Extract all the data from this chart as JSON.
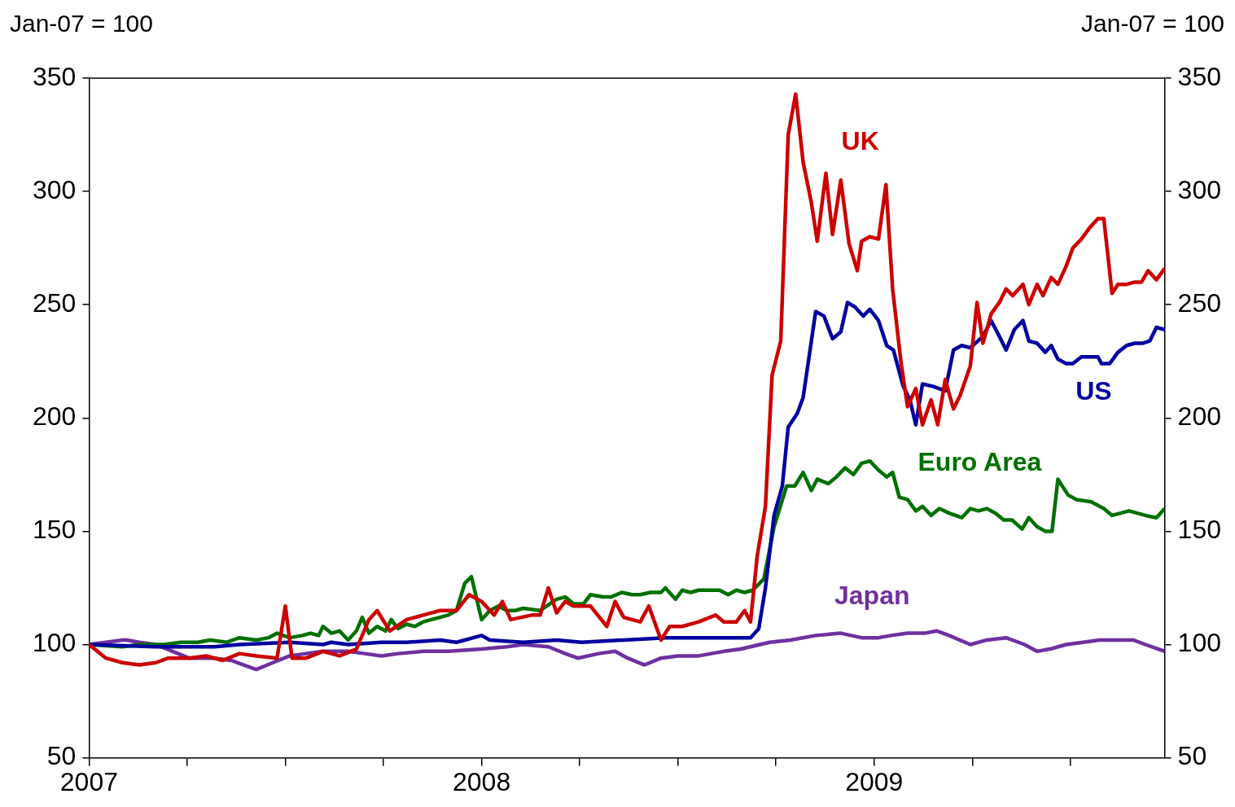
{
  "chart_data": {
    "type": "line",
    "ylabel": "Jan-07 = 100",
    "y2label": "Jan-07 = 100",
    "xlim": [
      2007,
      2009.74
    ],
    "ylim": [
      50,
      350
    ],
    "yticks": [
      50,
      100,
      150,
      200,
      250,
      300,
      350
    ],
    "y2lim": [
      50,
      350
    ],
    "y2ticks": [
      50,
      100,
      150,
      200,
      250,
      300,
      350
    ],
    "xticks": [
      {
        "value": 2007,
        "label": "2007"
      },
      {
        "value": 2007.25,
        "label": null
      },
      {
        "value": 2007.5,
        "label": null
      },
      {
        "value": 2007.75,
        "label": null
      },
      {
        "value": 2008,
        "label": "2008"
      },
      {
        "value": 2008.25,
        "label": null
      },
      {
        "value": 2008.5,
        "label": null
      },
      {
        "value": 2008.75,
        "label": null
      },
      {
        "value": 2009,
        "label": "2009"
      },
      {
        "value": 2009.25,
        "label": null
      },
      {
        "value": 2009.5,
        "label": null
      }
    ],
    "grid": false,
    "legend": false,
    "marker": "none",
    "line_style": "solid",
    "series": [
      {
        "name": "UK",
        "color": "#cc0000",
        "x": [
          2007,
          2007.043,
          2007.085,
          2007.128,
          2007.17,
          2007.202,
          2007.255,
          2007.298,
          2007.34,
          2007.383,
          2007.426,
          2007.479,
          2007.5,
          2007.517,
          2007.553,
          2007.596,
          2007.638,
          2007.681,
          2007.713,
          2007.734,
          2007.766,
          2007.809,
          2007.851,
          2007.894,
          2007.936,
          2007.968,
          2008,
          2008.032,
          2008.053,
          2008.074,
          2008.128,
          2008.149,
          2008.17,
          2008.191,
          2008.213,
          2008.234,
          2008.277,
          2008.319,
          2008.34,
          2008.362,
          2008.404,
          2008.426,
          2008.457,
          2008.479,
          2008.511,
          2008.553,
          2008.596,
          2008.617,
          2008.649,
          2008.67,
          2008.685,
          2008.702,
          2008.723,
          2008.74,
          2008.762,
          2008.781,
          2008.8,
          2008.819,
          2008.84,
          2008.855,
          2008.877,
          2008.894,
          2008.915,
          2008.936,
          2008.957,
          2008.968,
          2008.989,
          2009.011,
          2009.03,
          2009.047,
          2009.068,
          2009.085,
          2009.106,
          2009.123,
          2009.145,
          2009.162,
          2009.181,
          2009.202,
          2009.219,
          2009.245,
          2009.262,
          2009.277,
          2009.298,
          2009.319,
          2009.336,
          2009.353,
          2009.379,
          2009.394,
          2009.415,
          2009.43,
          2009.451,
          2009.468,
          2009.489,
          2009.506,
          2009.528,
          2009.549,
          2009.57,
          2009.585,
          2009.606,
          2009.621,
          2009.643,
          2009.664,
          2009.681,
          2009.698,
          2009.719,
          2009.74
        ],
        "values": [
          100,
          94,
          92,
          91,
          92,
          94,
          94,
          95,
          93,
          96,
          95,
          94,
          117,
          94,
          94,
          97,
          95,
          98,
          111,
          115,
          106,
          111,
          113,
          115,
          115,
          122,
          119,
          113,
          119,
          111,
          113,
          113,
          125,
          114,
          119,
          117,
          117,
          108,
          119,
          112,
          110,
          117,
          102,
          108,
          108,
          110,
          113,
          110,
          110,
          115,
          110,
          139,
          161,
          219,
          234,
          325,
          343,
          313,
          295,
          278,
          308,
          281,
          305,
          277,
          265,
          278,
          280,
          279,
          303,
          257,
          225,
          205,
          213,
          197,
          208,
          197,
          217,
          204,
          210,
          223,
          251,
          233,
          246,
          251,
          257,
          254,
          259,
          250,
          259,
          254,
          262,
          259,
          267,
          275,
          279,
          284,
          288,
          288,
          255,
          259,
          259,
          260,
          260,
          265,
          261,
          266
        ]
      },
      {
        "name": "US",
        "color": "#0000a0",
        "x": [
          2007,
          2007.17,
          2007.319,
          2007.383,
          2007.511,
          2007.596,
          2007.617,
          2007.66,
          2007.745,
          2007.809,
          2007.894,
          2007.936,
          2008,
          2008.021,
          2008.106,
          2008.191,
          2008.255,
          2008.362,
          2008.468,
          2008.511,
          2008.596,
          2008.66,
          2008.685,
          2008.706,
          2008.723,
          2008.745,
          2008.766,
          2008.781,
          2008.804,
          2008.819,
          2008.851,
          2008.872,
          2008.894,
          2008.915,
          2008.932,
          2008.951,
          2008.972,
          2008.989,
          2009.011,
          2009.032,
          2009.049,
          2009.074,
          2009.091,
          2009.106,
          2009.123,
          2009.149,
          2009.181,
          2009.202,
          2009.223,
          2009.245,
          2009.277,
          2009.298,
          2009.319,
          2009.336,
          2009.357,
          2009.379,
          2009.394,
          2009.415,
          2009.436,
          2009.451,
          2009.468,
          2009.489,
          2009.506,
          2009.528,
          2009.549,
          2009.57,
          2009.579,
          2009.6,
          2009.621,
          2009.643,
          2009.664,
          2009.685,
          2009.702,
          2009.719,
          2009.74
        ],
        "values": [
          100,
          99,
          99,
          100,
          101,
          100,
          101,
          100,
          101,
          101,
          102,
          101,
          104,
          102,
          101,
          102,
          101,
          102,
          103,
          103,
          103,
          103,
          103,
          107,
          125,
          157,
          170,
          196,
          202,
          209,
          247,
          245,
          235,
          238,
          251,
          249,
          245,
          248,
          243,
          232,
          230,
          214,
          208,
          197,
          215,
          214,
          212,
          230,
          232,
          231,
          236,
          243,
          236,
          230,
          239,
          243,
          234,
          233,
          229,
          232,
          226,
          224,
          224,
          227,
          227,
          227,
          224,
          224,
          229,
          232,
          233,
          233,
          234,
          240,
          239
        ]
      },
      {
        "name": "Euro Area",
        "color": "#007000",
        "x": [
          2007,
          2007.085,
          2007.128,
          2007.191,
          2007.234,
          2007.277,
          2007.309,
          2007.351,
          2007.383,
          2007.426,
          2007.457,
          2007.479,
          2007.511,
          2007.543,
          2007.564,
          2007.585,
          2007.596,
          2007.617,
          2007.638,
          2007.66,
          2007.681,
          2007.696,
          2007.713,
          2007.734,
          2007.755,
          2007.77,
          2007.787,
          2007.809,
          2007.83,
          2007.851,
          2007.872,
          2007.915,
          2007.936,
          2007.957,
          2007.974,
          2008,
          2008.021,
          2008.043,
          2008.064,
          2008.085,
          2008.106,
          2008.149,
          2008.191,
          2008.213,
          2008.234,
          2008.26,
          2008.277,
          2008.309,
          2008.33,
          2008.357,
          2008.383,
          2008.404,
          2008.43,
          2008.457,
          2008.468,
          2008.494,
          2008.511,
          2008.532,
          2008.553,
          2008.574,
          2008.606,
          2008.628,
          2008.649,
          2008.67,
          2008.691,
          2008.719,
          2008.745,
          2008.777,
          2008.798,
          2008.819,
          2008.84,
          2008.855,
          2008.883,
          2008.904,
          2008.926,
          2008.947,
          2008.968,
          2008.989,
          2009.011,
          2009.032,
          2009.047,
          2009.064,
          2009.085,
          2009.106,
          2009.123,
          2009.145,
          2009.166,
          2009.191,
          2009.223,
          2009.245,
          2009.266,
          2009.287,
          2009.309,
          2009.33,
          2009.351,
          2009.377,
          2009.394,
          2009.415,
          2009.436,
          2009.453,
          2009.468,
          2009.494,
          2009.515,
          2009.553,
          2009.585,
          2009.606,
          2009.628,
          2009.649,
          2009.67,
          2009.691,
          2009.719,
          2009.74
        ],
        "values": [
          100,
          99,
          100,
          100,
          101,
          101,
          102,
          101,
          103,
          102,
          103,
          105,
          103,
          104,
          105,
          104,
          108,
          105,
          106,
          102,
          106,
          112,
          105,
          108,
          106,
          111,
          107,
          109,
          108,
          110,
          111,
          113,
          115,
          127,
          130,
          111,
          115,
          117,
          115,
          115,
          116,
          115,
          120,
          121,
          118,
          118,
          122,
          121,
          121,
          123,
          122,
          122,
          123,
          123,
          125,
          120,
          124,
          123,
          124,
          124,
          124,
          122,
          124,
          123,
          124,
          129,
          152,
          170,
          170,
          176,
          168,
          173,
          171,
          174,
          178,
          175,
          180,
          181,
          177,
          174,
          176,
          165,
          164,
          159,
          161,
          157,
          160,
          158,
          156,
          160,
          159,
          160,
          158,
          155,
          155,
          151,
          156,
          152,
          150,
          150,
          173,
          166,
          164,
          163,
          160,
          157,
          158,
          159,
          158,
          157,
          156,
          160
        ]
      },
      {
        "name": "Japan",
        "color": "#7030a0",
        "x": [
          2007,
          2007.043,
          2007.085,
          2007.096,
          2007.128,
          2007.17,
          2007.213,
          2007.255,
          2007.319,
          2007.362,
          2007.394,
          2007.426,
          2007.468,
          2007.511,
          2007.553,
          2007.596,
          2007.66,
          2007.702,
          2007.745,
          2007.787,
          2007.851,
          2007.915,
          2008,
          2008.064,
          2008.106,
          2008.17,
          2008.213,
          2008.245,
          2008.298,
          2008.34,
          2008.372,
          2008.415,
          2008.457,
          2008.5,
          2008.553,
          2008.617,
          2008.66,
          2008.734,
          2008.787,
          2008.851,
          2008.915,
          2008.968,
          2009.011,
          2009.043,
          2009.085,
          2009.128,
          2009.16,
          2009.191,
          2009.245,
          2009.287,
          2009.336,
          2009.383,
          2009.415,
          2009.447,
          2009.489,
          2009.532,
          2009.574,
          2009.66,
          2009.691,
          2009.74
        ],
        "values": [
          100,
          101,
          102,
          102,
          101,
          100,
          97,
          94,
          94,
          93,
          91,
          89,
          92,
          95,
          96,
          97,
          97,
          96,
          95,
          96,
          97,
          97,
          98,
          99,
          100,
          99,
          96,
          94,
          96,
          97,
          94,
          91,
          94,
          95,
          95,
          97,
          98,
          101,
          102,
          104,
          105,
          103,
          103,
          104,
          105,
          105,
          106,
          104,
          100,
          102,
          103,
          100,
          97,
          98,
          100,
          101,
          102,
          102,
          100,
          97
        ]
      }
    ]
  }
}
